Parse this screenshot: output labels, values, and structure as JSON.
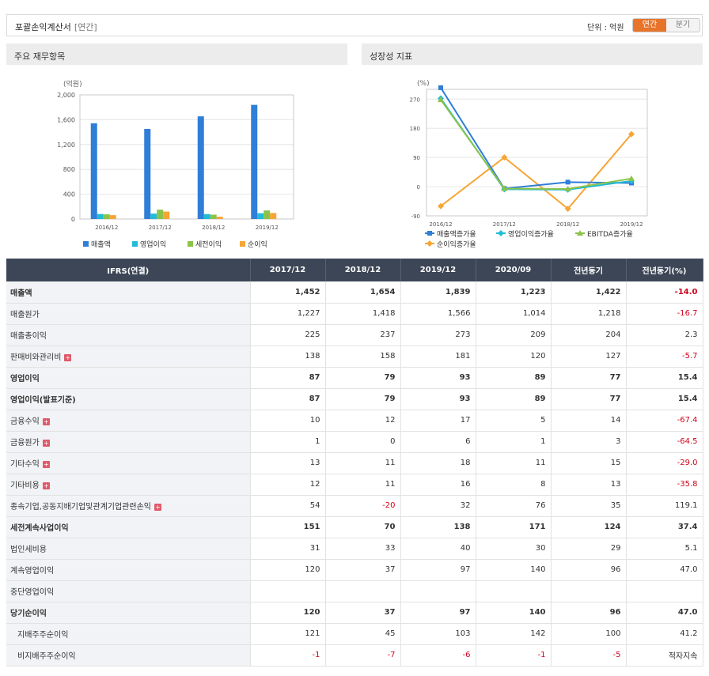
{
  "header": {
    "title": "포괄손익계산서",
    "subtitle": "[연간]",
    "unit_label": "단위 : 억원",
    "toggle_annual": "연간",
    "toggle_quarter": "분기"
  },
  "panels": {
    "left_title": "주요 재무항목",
    "right_title": "성장성 지표"
  },
  "chart_data": [
    {
      "type": "bar",
      "ylabel": "(억원)",
      "categories": [
        "2016/12",
        "2017/12",
        "2018/12",
        "2019/12"
      ],
      "ylim": [
        0,
        2000
      ],
      "yticks": [
        0,
        400,
        800,
        1200,
        1600,
        2000
      ],
      "ytick_labels": [
        "0",
        "400",
        "800",
        "1,200",
        "1,600",
        "2,000"
      ],
      "legend_position": "bottom",
      "series": [
        {
          "name": "매출액",
          "color": "#2f7ed8",
          "values": [
            1541,
            1452,
            1654,
            1839
          ]
        },
        {
          "name": "영업이익",
          "color": "#21bcd6",
          "values": [
            80,
            87,
            79,
            93
          ]
        },
        {
          "name": "세전이익",
          "color": "#8bc34a",
          "values": [
            75,
            151,
            70,
            138
          ]
        },
        {
          "name": "순이익",
          "color": "#f7a535",
          "values": [
            62,
            120,
            37,
            97
          ]
        }
      ]
    },
    {
      "type": "line",
      "ylabel": "(%)",
      "categories": [
        "2016/12",
        "2017/12",
        "2018/12",
        "2019/12"
      ],
      "ylim": [
        -90,
        300
      ],
      "yticks": [
        -90,
        0,
        90,
        180,
        270
      ],
      "ytick_labels": [
        "-90",
        "0",
        "90",
        "180",
        "270"
      ],
      "legend_position": "bottom",
      "series": [
        {
          "name": "매출액증가율",
          "color": "#2f7ed8",
          "marker": "square",
          "values": [
            305,
            -5.8,
            13.9,
            11.2
          ]
        },
        {
          "name": "영업이익증가율",
          "color": "#21bcd6",
          "marker": "diamond",
          "values": [
            272,
            -8,
            -9.2,
            17.7
          ]
        },
        {
          "name": "EBITDA증가율",
          "color": "#8bc34a",
          "marker": "triangle",
          "values": [
            268,
            -6,
            -7,
            25
          ]
        },
        {
          "name": "순이익증가율",
          "color": "#f7a535",
          "marker": "diamond",
          "values": [
            -60,
            90,
            -68,
            162
          ]
        }
      ]
    }
  ],
  "table": {
    "headers": [
      "IFRS(연결)",
      "2017/12",
      "2018/12",
      "2019/12",
      "2020/09",
      "전년동기",
      "전년동기(%)"
    ],
    "rows": [
      {
        "name": "매출액",
        "bold": true,
        "plus": false,
        "indent": false,
        "values": [
          "1,452",
          "1,654",
          "1,839",
          "1,223",
          "1,422",
          "-14.0"
        ]
      },
      {
        "name": "매출원가",
        "bold": false,
        "plus": false,
        "indent": false,
        "values": [
          "1,227",
          "1,418",
          "1,566",
          "1,014",
          "1,218",
          "-16.7"
        ]
      },
      {
        "name": "매출총이익",
        "bold": false,
        "plus": false,
        "indent": false,
        "values": [
          "225",
          "237",
          "273",
          "209",
          "204",
          "2.3"
        ]
      },
      {
        "name": "판매비와관리비",
        "bold": false,
        "plus": true,
        "indent": false,
        "values": [
          "138",
          "158",
          "181",
          "120",
          "127",
          "-5.7"
        ]
      },
      {
        "name": "영업이익",
        "bold": true,
        "plus": false,
        "indent": false,
        "values": [
          "87",
          "79",
          "93",
          "89",
          "77",
          "15.4"
        ]
      },
      {
        "name": "영업이익(발표기준)",
        "bold": true,
        "plus": false,
        "indent": false,
        "values": [
          "87",
          "79",
          "93",
          "89",
          "77",
          "15.4"
        ]
      },
      {
        "name": "금융수익",
        "bold": false,
        "plus": true,
        "indent": false,
        "values": [
          "10",
          "12",
          "17",
          "5",
          "14",
          "-67.4"
        ]
      },
      {
        "name": "금융원가",
        "bold": false,
        "plus": true,
        "indent": false,
        "values": [
          "1",
          "0",
          "6",
          "1",
          "3",
          "-64.5"
        ]
      },
      {
        "name": "기타수익",
        "bold": false,
        "plus": true,
        "indent": false,
        "values": [
          "13",
          "11",
          "18",
          "11",
          "15",
          "-29.0"
        ]
      },
      {
        "name": "기타비용",
        "bold": false,
        "plus": true,
        "indent": false,
        "values": [
          "12",
          "11",
          "16",
          "8",
          "13",
          "-35.8"
        ]
      },
      {
        "name": "종속기업,공동지배기업및관계기업관련손익",
        "bold": false,
        "plus": true,
        "indent": false,
        "values": [
          "54",
          "-20",
          "32",
          "76",
          "35",
          "119.1"
        ]
      },
      {
        "name": "세전계속사업이익",
        "bold": true,
        "plus": false,
        "indent": false,
        "values": [
          "151",
          "70",
          "138",
          "171",
          "124",
          "37.4"
        ]
      },
      {
        "name": "법인세비용",
        "bold": false,
        "plus": false,
        "indent": false,
        "values": [
          "31",
          "33",
          "40",
          "30",
          "29",
          "5.1"
        ]
      },
      {
        "name": "계속영업이익",
        "bold": false,
        "plus": false,
        "indent": false,
        "values": [
          "120",
          "37",
          "97",
          "140",
          "96",
          "47.0"
        ]
      },
      {
        "name": "중단영업이익",
        "bold": false,
        "plus": false,
        "indent": false,
        "values": [
          "",
          "",
          "",
          "",
          "",
          ""
        ]
      },
      {
        "name": "당기순이익",
        "bold": true,
        "plus": false,
        "indent": false,
        "values": [
          "120",
          "37",
          "97",
          "140",
          "96",
          "47.0"
        ]
      },
      {
        "name": "지배주주순이익",
        "bold": false,
        "plus": false,
        "indent": true,
        "values": [
          "121",
          "45",
          "103",
          "142",
          "100",
          "41.2"
        ]
      },
      {
        "name": "비지배주주순이익",
        "bold": false,
        "plus": false,
        "indent": true,
        "values": [
          "-1",
          "-7",
          "-6",
          "-1",
          "-5",
          "적자지속"
        ]
      }
    ]
  }
}
